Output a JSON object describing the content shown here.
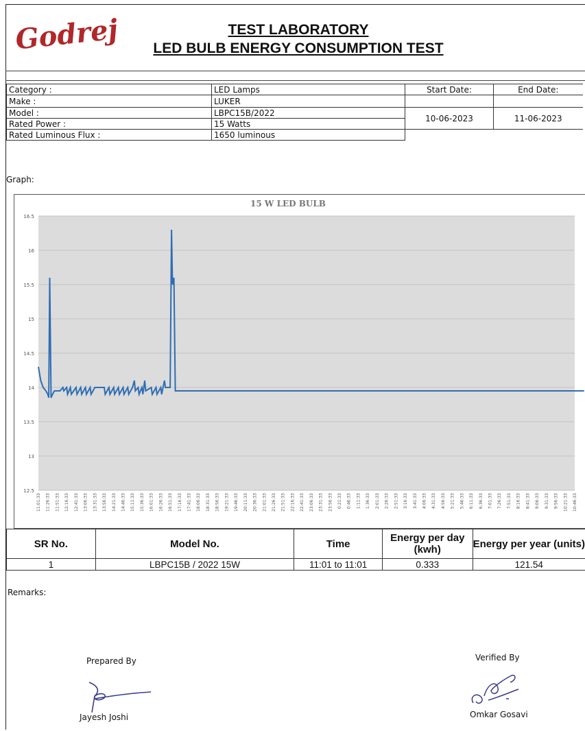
{
  "header": {
    "logo_text": "Godrej",
    "title_line1": "TEST LABORATORY",
    "title_line2": "LED BULB ENERGY CONSUMPTION TEST"
  },
  "info": {
    "category_label": "Category :",
    "category_value": "LED Lamps",
    "make_label": "Make :",
    "make_value": "LUKER",
    "model_label": "Model :",
    "model_value": "LBPC15B/2022",
    "rated_power_label": "Rated Power :",
    "rated_power_value": "15 Watts",
    "flux_label": "Rated Luminous Flux :",
    "flux_value": "1650 luminous",
    "start_date_label": "Start Date:",
    "end_date_label": "End Date:",
    "start_date": "10-06-2023",
    "end_date": "11-06-2023"
  },
  "graph_label": "Graph:",
  "chart_data": {
    "type": "line",
    "title": "15 W LED BULB",
    "xlabel": "",
    "ylabel": "",
    "ylim": [
      12.5,
      16.5
    ],
    "yticks": [
      "12.5",
      "13",
      "13.5",
      "14",
      "14.5",
      "15",
      "15.5",
      "16",
      "16.5"
    ],
    "grid": true,
    "x_tick_labels": [
      "11:01:33",
      "11:26:33",
      "11:51:33",
      "12:16:33",
      "12:41:33",
      "13:06:33",
      "13:31:33",
      "13:56:33",
      "14:21:33",
      "14:46:33",
      "15:11:33",
      "15:36:33",
      "16:01:33",
      "16:26:33",
      "16:51:33",
      "17:16:33",
      "17:41:33",
      "18:06:33",
      "18:31:33",
      "18:56:33",
      "19:21:33",
      "19:46:33",
      "20:11:33",
      "20:36:33",
      "21:01:33",
      "21:26:33",
      "21:51:33",
      "22:16:33",
      "22:41:33",
      "23:06:33",
      "23:31:33",
      "23:56:33",
      "0:21:33",
      "0:46:33",
      "1:11:33",
      "1:36:33",
      "2:01:33",
      "2:26:33",
      "2:51:33",
      "3:16:33",
      "3:41:33",
      "4:06:33",
      "4:31:33",
      "4:56:33",
      "5:21:33",
      "5:46:33",
      "6:11:33",
      "6:36:33",
      "7:01:33",
      "7:26:33",
      "7:51:33",
      "8:16:33",
      "8:41:33",
      "9:06:33",
      "9:31:33",
      "9:56:33",
      "10:21:33",
      "10:46:33"
    ],
    "series": [
      {
        "color": "#2e6db4",
        "points": [
          [
            0,
            14.3
          ],
          [
            0.25,
            14.1
          ],
          [
            0.5,
            14.0
          ],
          [
            0.8,
            13.95
          ],
          [
            1.0,
            13.9
          ],
          [
            1.1,
            13.85
          ],
          [
            1.2,
            15.6
          ],
          [
            1.35,
            13.85
          ],
          [
            1.5,
            13.9
          ],
          [
            1.7,
            13.95
          ],
          [
            2.0,
            13.95
          ],
          [
            2.3,
            13.95
          ],
          [
            2.6,
            14.0
          ],
          [
            2.7,
            13.95
          ],
          [
            3.0,
            14.0
          ],
          [
            3.1,
            13.9
          ],
          [
            3.4,
            14.0
          ],
          [
            3.5,
            13.9
          ],
          [
            4.0,
            14.0
          ],
          [
            4.1,
            13.9
          ],
          [
            4.5,
            14.0
          ],
          [
            4.6,
            13.9
          ],
          [
            5.0,
            14.0
          ],
          [
            5.1,
            13.9
          ],
          [
            5.5,
            14.0
          ],
          [
            5.6,
            13.9
          ],
          [
            6.0,
            14.0
          ],
          [
            6.5,
            14.0
          ],
          [
            7.0,
            14.0
          ],
          [
            7.1,
            13.9
          ],
          [
            7.5,
            14.0
          ],
          [
            7.6,
            13.9
          ],
          [
            8.0,
            14.0
          ],
          [
            8.1,
            13.9
          ],
          [
            8.5,
            14.0
          ],
          [
            8.6,
            13.9
          ],
          [
            9.0,
            14.0
          ],
          [
            9.1,
            13.9
          ],
          [
            9.5,
            14.0
          ],
          [
            9.6,
            13.9
          ],
          [
            10.0,
            14.0
          ],
          [
            10.2,
            14.1
          ],
          [
            10.3,
            13.95
          ],
          [
            10.6,
            14.0
          ],
          [
            10.7,
            13.9
          ],
          [
            11.0,
            14.0
          ],
          [
            11.1,
            13.9
          ],
          [
            11.3,
            14.1
          ],
          [
            11.4,
            13.95
          ],
          [
            12.0,
            14.0
          ],
          [
            12.1,
            13.9
          ],
          [
            12.5,
            14.0
          ],
          [
            12.6,
            13.9
          ],
          [
            13.0,
            14.0
          ],
          [
            13.1,
            13.9
          ],
          [
            13.4,
            14.1
          ],
          [
            13.5,
            14.0
          ],
          [
            14.0,
            14.0
          ],
          [
            14.15,
            16.3
          ],
          [
            14.25,
            15.5
          ],
          [
            14.4,
            15.6
          ],
          [
            14.55,
            13.95
          ],
          [
            15.0,
            13.95
          ],
          [
            20.0,
            13.95
          ],
          [
            30.0,
            13.95
          ],
          [
            40.0,
            13.95
          ],
          [
            50.0,
            13.95
          ],
          [
            57.0,
            13.95
          ],
          [
            58.0,
            13.95
          ]
        ]
      }
    ]
  },
  "results": {
    "headers": [
      "SR No.",
      "Model No.",
      "Time",
      "Energy per day (kwh)",
      "Energy per year (units)"
    ],
    "rows": [
      [
        "1",
        "LBPC15B / 2022 15W",
        "11:01 to 11:01",
        "0.333",
        "121.54"
      ]
    ]
  },
  "remarks_label": "Remarks:",
  "signatures": {
    "prepared_label": "Prepared By",
    "prepared_name": "Jayesh Joshi",
    "verified_label": "Verified By",
    "verified_name": "Omkar Gosavi"
  },
  "colors": {
    "line": "#2e6db4",
    "plot_bg": "#dcdcdc"
  }
}
